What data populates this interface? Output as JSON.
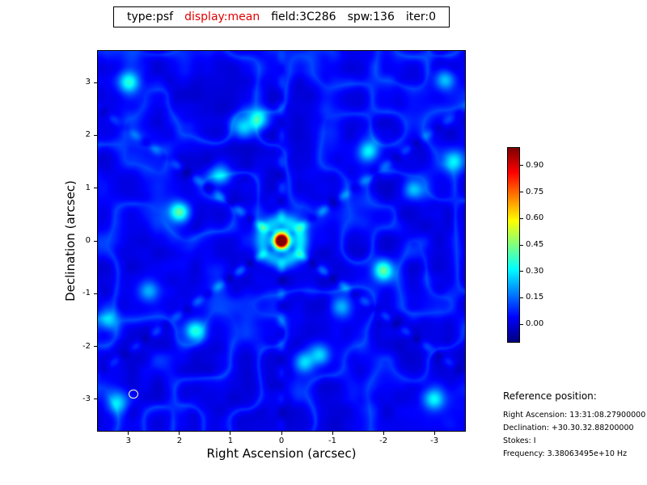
{
  "title_bar": {
    "segments": [
      {
        "text": "type:psf",
        "color": "#000000"
      },
      {
        "text": "display:mean",
        "color": "#e00000"
      },
      {
        "text": "field:3C286",
        "color": "#000000"
      },
      {
        "text": "spw:136",
        "color": "#000000"
      },
      {
        "text": "iter:0",
        "color": "#000000"
      }
    ]
  },
  "chart_data": {
    "type": "heatmap",
    "title": "type:psf display:mean field:3C286 spw:136 iter:0",
    "description": "Point spread function (synthesized beam) image of field 3C286, jet colormap, peak 1.0 at origin with six-fold sidelobe star pattern and secondary lobes",
    "xlabel": "Right Ascension (arcsec)",
    "ylabel": "Declination (arcsec)",
    "x_axis": {
      "range": [
        3.6,
        -3.6
      ],
      "ticks": [
        3,
        2,
        1,
        0,
        -1,
        -2,
        -3
      ],
      "tick_labels": [
        "3",
        "2",
        "1",
        "0",
        "-1",
        "-2",
        "-3"
      ]
    },
    "y_axis": {
      "range": [
        -3.6,
        3.6
      ],
      "ticks": [
        3,
        2,
        1,
        0,
        -1,
        -2,
        -3
      ],
      "tick_labels": [
        "3",
        "2",
        "1",
        "0",
        "-1",
        "-2",
        "-3"
      ]
    },
    "colorbar": {
      "colormap": "jet",
      "position": "right",
      "vmin": -0.1,
      "vmax": 1.0,
      "ticks": [
        0.9,
        0.75,
        0.6,
        0.45,
        0.3,
        0.15,
        0.0
      ],
      "tick_labels": [
        "0.90",
        "0.75",
        "0.60",
        "0.45",
        "0.30",
        "0.15",
        "0.00"
      ]
    },
    "peak": {
      "ra_arcsec": 0,
      "dec_arcsec": 0,
      "value": 1.0
    },
    "beam_marker": {
      "ra_arcsec": 2.9,
      "dec_arcsec": -2.9,
      "radius_arcsec": 0.09,
      "color": "#ffffcc"
    },
    "psf_model": {
      "core_sigma_arcsec": 0.11,
      "halo_ring": {
        "radius": 0.38,
        "sigma": 0.11,
        "amp": 0.22
      },
      "arm_angles_deg": [
        35,
        145,
        90
      ],
      "arm_amps": [
        0.17,
        0.17,
        0.1
      ],
      "arm_sigma_arcsec": 0.06,
      "arm_ripple_period_arcsec": 0.5,
      "sidelobe_sigma_arcsec": 0.14,
      "sidelobes": [
        [
          2.0,
          0.55,
          0.4
        ],
        [
          -2.0,
          -0.55,
          0.4
        ],
        [
          1.7,
          -1.7,
          0.3
        ],
        [
          -1.7,
          1.7,
          0.3
        ],
        [
          0.45,
          2.3,
          0.27
        ],
        [
          -0.45,
          -2.3,
          0.27
        ],
        [
          0.75,
          2.15,
          0.24
        ],
        [
          -0.75,
          -2.15,
          0.24
        ],
        [
          3.0,
          3.0,
          0.28
        ],
        [
          -3.0,
          -3.0,
          0.28
        ],
        [
          -3.2,
          3.05,
          0.24
        ],
        [
          3.2,
          -3.05,
          0.24
        ],
        [
          3.4,
          -1.5,
          0.22
        ],
        [
          -3.4,
          1.5,
          0.22
        ],
        [
          2.6,
          -0.95,
          0.2
        ],
        [
          -2.6,
          0.95,
          0.2
        ],
        [
          1.2,
          1.25,
          0.22
        ],
        [
          -1.2,
          -1.25,
          0.22
        ]
      ],
      "noise": {
        "filament_amp": 0.1,
        "filament_scale": 1.8,
        "speckle_amp": 0.05,
        "speckle_scale": 4.0
      }
    }
  },
  "reference_info": {
    "heading": "Reference position:",
    "lines": [
      "Right Ascension: 13:31:08.27900000",
      "Declination: +30.30.32.88200000",
      "Stokes: I",
      "Frequency: 3.38063495e+10 Hz"
    ]
  }
}
